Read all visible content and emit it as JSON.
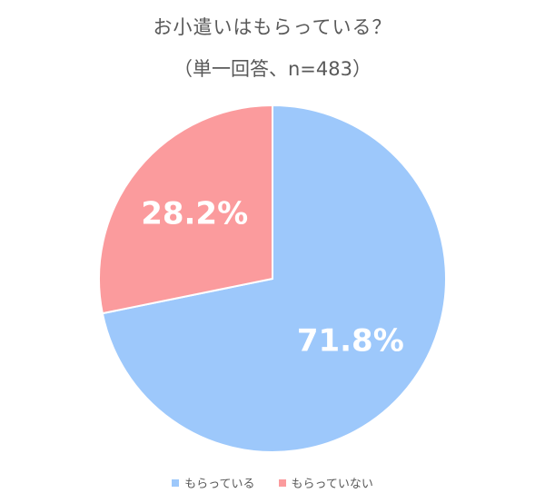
{
  "chart_data": {
    "type": "pie",
    "title": "お小遣いはもらっている？",
    "subtitle": "（単一回答、n=483）",
    "categories": [
      "もらっている",
      "もらっていない"
    ],
    "values": [
      71.8,
      28.2
    ],
    "labels": [
      "71.8%",
      "28.2%"
    ],
    "colors": [
      "#9dc8fb",
      "#fb9b9d"
    ],
    "legend_position": "bottom"
  }
}
